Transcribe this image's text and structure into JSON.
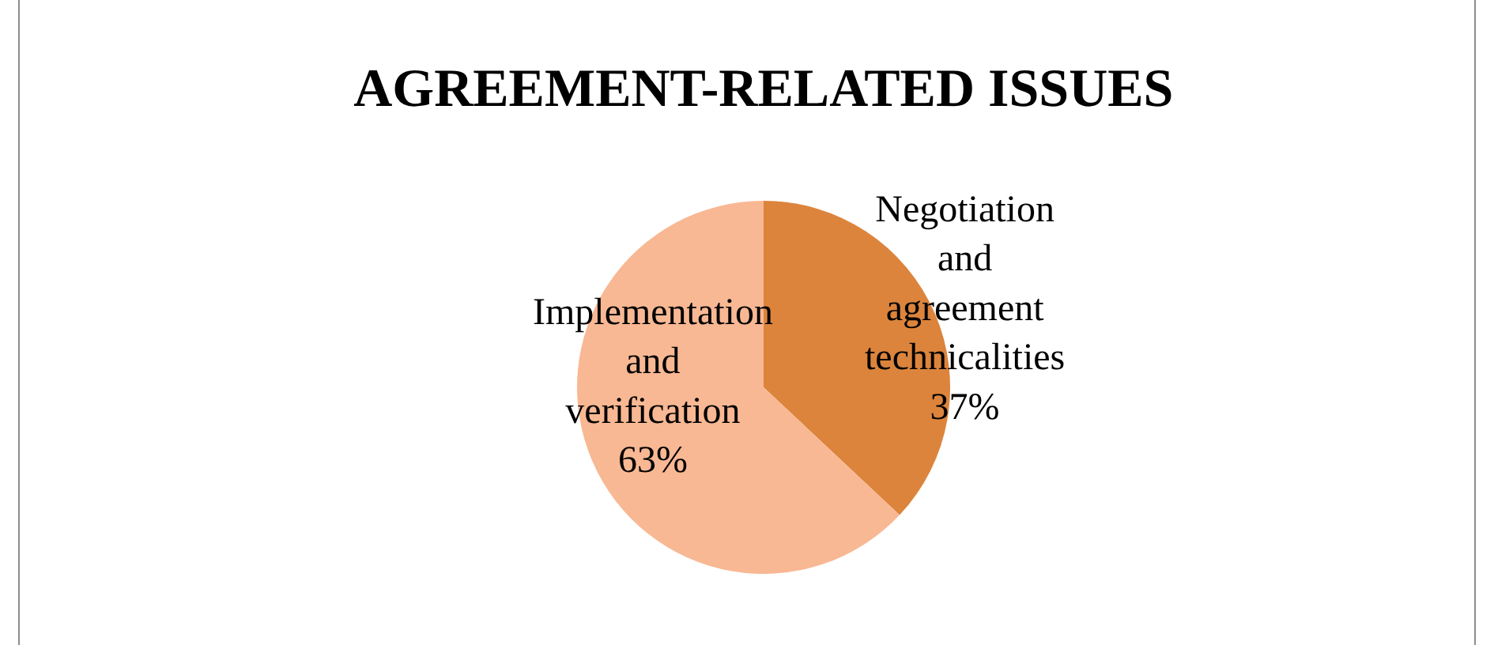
{
  "chart_data": {
    "type": "pie",
    "title": "AGREEMENT-RELATED ISSUES",
    "categories": [
      "Negotiation and agreement technicalities",
      "Implementation and verification"
    ],
    "values": [
      37,
      63
    ],
    "value_labels": [
      "37%",
      "63%"
    ],
    "colors": [
      "#dc843c",
      "#f8b893"
    ],
    "legend": false
  }
}
